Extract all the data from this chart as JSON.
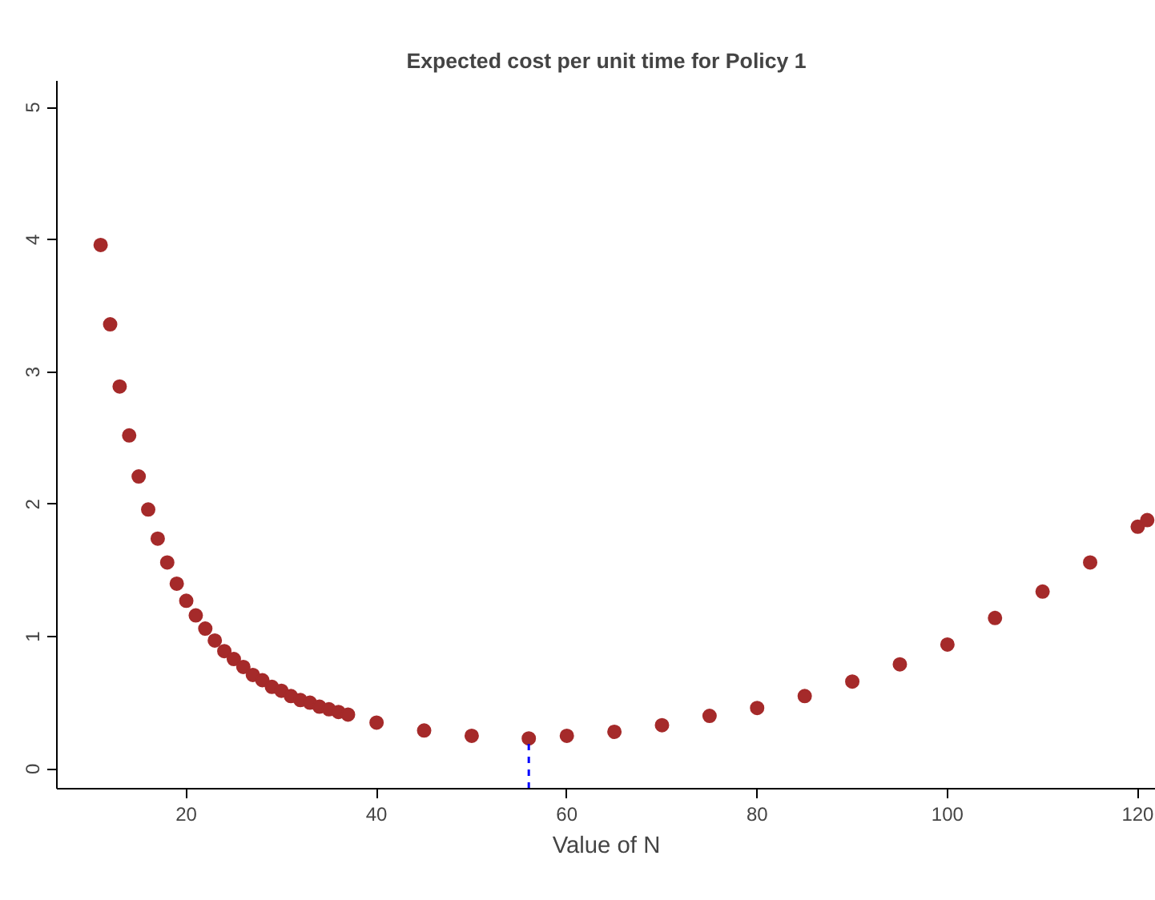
{
  "chart_data": {
    "type": "scatter",
    "title": "Expected cost per unit time for Policy 1",
    "xlabel": "Value of N",
    "x": [
      11,
      12,
      13,
      14,
      15,
      16,
      17,
      18,
      19,
      20,
      21,
      22,
      23,
      24,
      25,
      26,
      27,
      28,
      29,
      30,
      31,
      32,
      33,
      34,
      35,
      36,
      37,
      40,
      45,
      50,
      56,
      60,
      65,
      70,
      75,
      80,
      85,
      90,
      95,
      100,
      105,
      110,
      115,
      120,
      121
    ],
    "series": [
      {
        "color": "#a52a2a",
        "values": [
          3.96,
          3.36,
          2.89,
          2.52,
          2.21,
          1.96,
          1.74,
          1.56,
          1.4,
          1.27,
          1.16,
          1.06,
          0.97,
          0.89,
          0.83,
          0.77,
          0.71,
          0.67,
          0.62,
          0.59,
          0.55,
          0.52,
          0.5,
          0.47,
          0.45,
          0.43,
          0.41,
          0.35,
          0.29,
          0.25,
          0.23,
          0.25,
          0.28,
          0.33,
          0.4,
          0.46,
          0.55,
          0.66,
          0.79,
          0.94,
          1.14,
          1.34,
          1.56,
          1.83,
          1.88
        ]
      },
      {
        "type": "line",
        "x": [
          56,
          56
        ],
        "values": [
          -0.15,
          0.23
        ],
        "color": "#0000ff",
        "line_style": "dashed",
        "marker": "none"
      }
    ],
    "xlim": [
      6.4,
      121.9
    ],
    "ylim": [
      -0.15,
      5.2
    ],
    "xticks": [
      20,
      40,
      60,
      80,
      100,
      120
    ],
    "yticks": [
      0,
      1,
      2,
      3,
      4,
      5
    ],
    "marker": "circle",
    "grid": false
  }
}
